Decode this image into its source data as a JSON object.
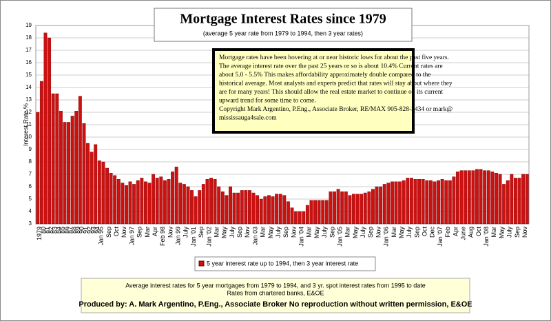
{
  "chart_data": {
    "type": "bar",
    "title": "Mortgage Interest Rates since 1979",
    "subtitle": "(average 5 year rate from 1979 to 1994, then 3 year rates)",
    "ylabel": "Interest Rate %",
    "color": "#cc1111",
    "grid": true,
    "ylim": [
      3,
      19
    ],
    "yticks": [
      3,
      4,
      5,
      6,
      7,
      8,
      9,
      10,
      11,
      12,
      13,
      14,
      15,
      16,
      17,
      18,
      19
    ],
    "legend": "5 year interest rate up to 1994, then 3 year interest rate",
    "note_lines": [
      "Mortgage rates have been hovering at or near historic lows for about the past five years.",
      "The average interest rate over the past 25 years or so is about 10.4%  Current rates are",
      "about 5.0 - 5.5%   This makes affordability approximately double compared to the",
      "historical average.  Most analysts and experts predict that rates will stay about where they",
      "are for many years!  This should  allow the real estate market to continue on its current",
      "upward trend for some time to come.",
      "Copyright Mark Argentino, P.Eng., Associate Broker, RE/MAX 905-828-3434 or mark@",
      "mississauga4sale.com"
    ],
    "footer_lines": [
      "Average interest rates for 5 year mortgages from 1979 to 1994, and 3 yr. spot interest rates from 1995 to date",
      "Rates from chartered banks, E&OE"
    ],
    "footer_bold": "Produced by: A. Mark Argentino, P.Eng., Associate Broker No reproduction without written permission, E&OE",
    "categories": [
      "1979",
      "80",
      "81",
      "82",
      "83",
      "84",
      "85",
      "86",
      "87",
      "88",
      "89",
      "90",
      "91",
      "92",
      "93",
      "94",
      "Jan 95",
      null,
      "Sep",
      null,
      "Oct",
      null,
      "Nov",
      null,
      "Jan 97",
      null,
      "Sep",
      null,
      "Mar",
      null,
      "Apr",
      null,
      "Feb 98",
      null,
      "Nov",
      null,
      "Jan 99",
      null,
      "July",
      null,
      "Jan '01",
      null,
      "Sep",
      null,
      "Jan '02",
      null,
      "Mar",
      null,
      "May",
      null,
      "July",
      null,
      "Sep",
      null,
      "Nov",
      null,
      "Jan 03",
      null,
      "Mar",
      null,
      "May",
      null,
      "July",
      null,
      "Sep",
      null,
      "Nov",
      null,
      "Jan '04",
      null,
      "Mar",
      null,
      "May",
      null,
      "July",
      null,
      "Sep",
      null,
      "Jan '05",
      null,
      "Mar",
      null,
      "May",
      null,
      "July",
      null,
      "Sep",
      null,
      "Nov",
      null,
      "Jan '06",
      null,
      "Mar",
      null,
      "May",
      null,
      "July",
      null,
      "Sep",
      null,
      "Oct",
      null,
      "Dec",
      null,
      "Jan '07",
      null,
      "Feb",
      null,
      "Apr",
      null,
      "June",
      null,
      "Aug",
      null,
      "Oct",
      null,
      "Jan '08",
      null,
      "Mar",
      null,
      "May",
      null,
      "July",
      null,
      "Sep",
      null,
      "Nov",
      null
    ],
    "values": [
      12.0,
      14.5,
      18.4,
      18.0,
      13.5,
      13.5,
      12.1,
      11.2,
      11.2,
      11.7,
      12.1,
      13.3,
      11.1,
      9.5,
      8.8,
      9.4,
      8.1,
      8.0,
      7.5,
      7.1,
      6.9,
      6.6,
      6.3,
      6.1,
      6.4,
      6.2,
      6.5,
      6.7,
      6.4,
      6.3,
      7.0,
      6.7,
      6.8,
      6.5,
      6.6,
      7.2,
      7.6,
      6.3,
      6.2,
      6.0,
      5.7,
      5.2,
      5.7,
      6.2,
      6.6,
      6.7,
      6.6,
      6.0,
      5.6,
      5.3,
      6.0,
      5.5,
      5.5,
      5.7,
      5.7,
      5.7,
      5.5,
      5.3,
      5.0,
      5.2,
      5.3,
      5.2,
      5.4,
      5.4,
      5.3,
      4.8,
      4.3,
      4.0,
      4.0,
      4.0,
      4.5,
      4.9,
      4.9,
      4.9,
      4.9,
      4.9,
      5.6,
      5.6,
      5.8,
      5.6,
      5.6,
      5.3,
      5.4,
      5.4,
      5.4,
      5.5,
      5.6,
      5.8,
      6.0,
      6.0,
      6.2,
      6.3,
      6.4,
      6.4,
      6.4,
      6.5,
      6.7,
      6.7,
      6.6,
      6.6,
      6.6,
      6.5,
      6.5,
      6.4,
      6.5,
      6.6,
      6.5,
      6.5,
      6.8,
      7.2,
      7.3,
      7.3,
      7.3,
      7.3,
      7.4,
      7.4,
      7.3,
      7.3,
      7.2,
      7.1,
      7.0,
      6.2,
      6.5,
      7.0,
      6.7,
      6.7,
      7.0,
      7.0
    ]
  }
}
